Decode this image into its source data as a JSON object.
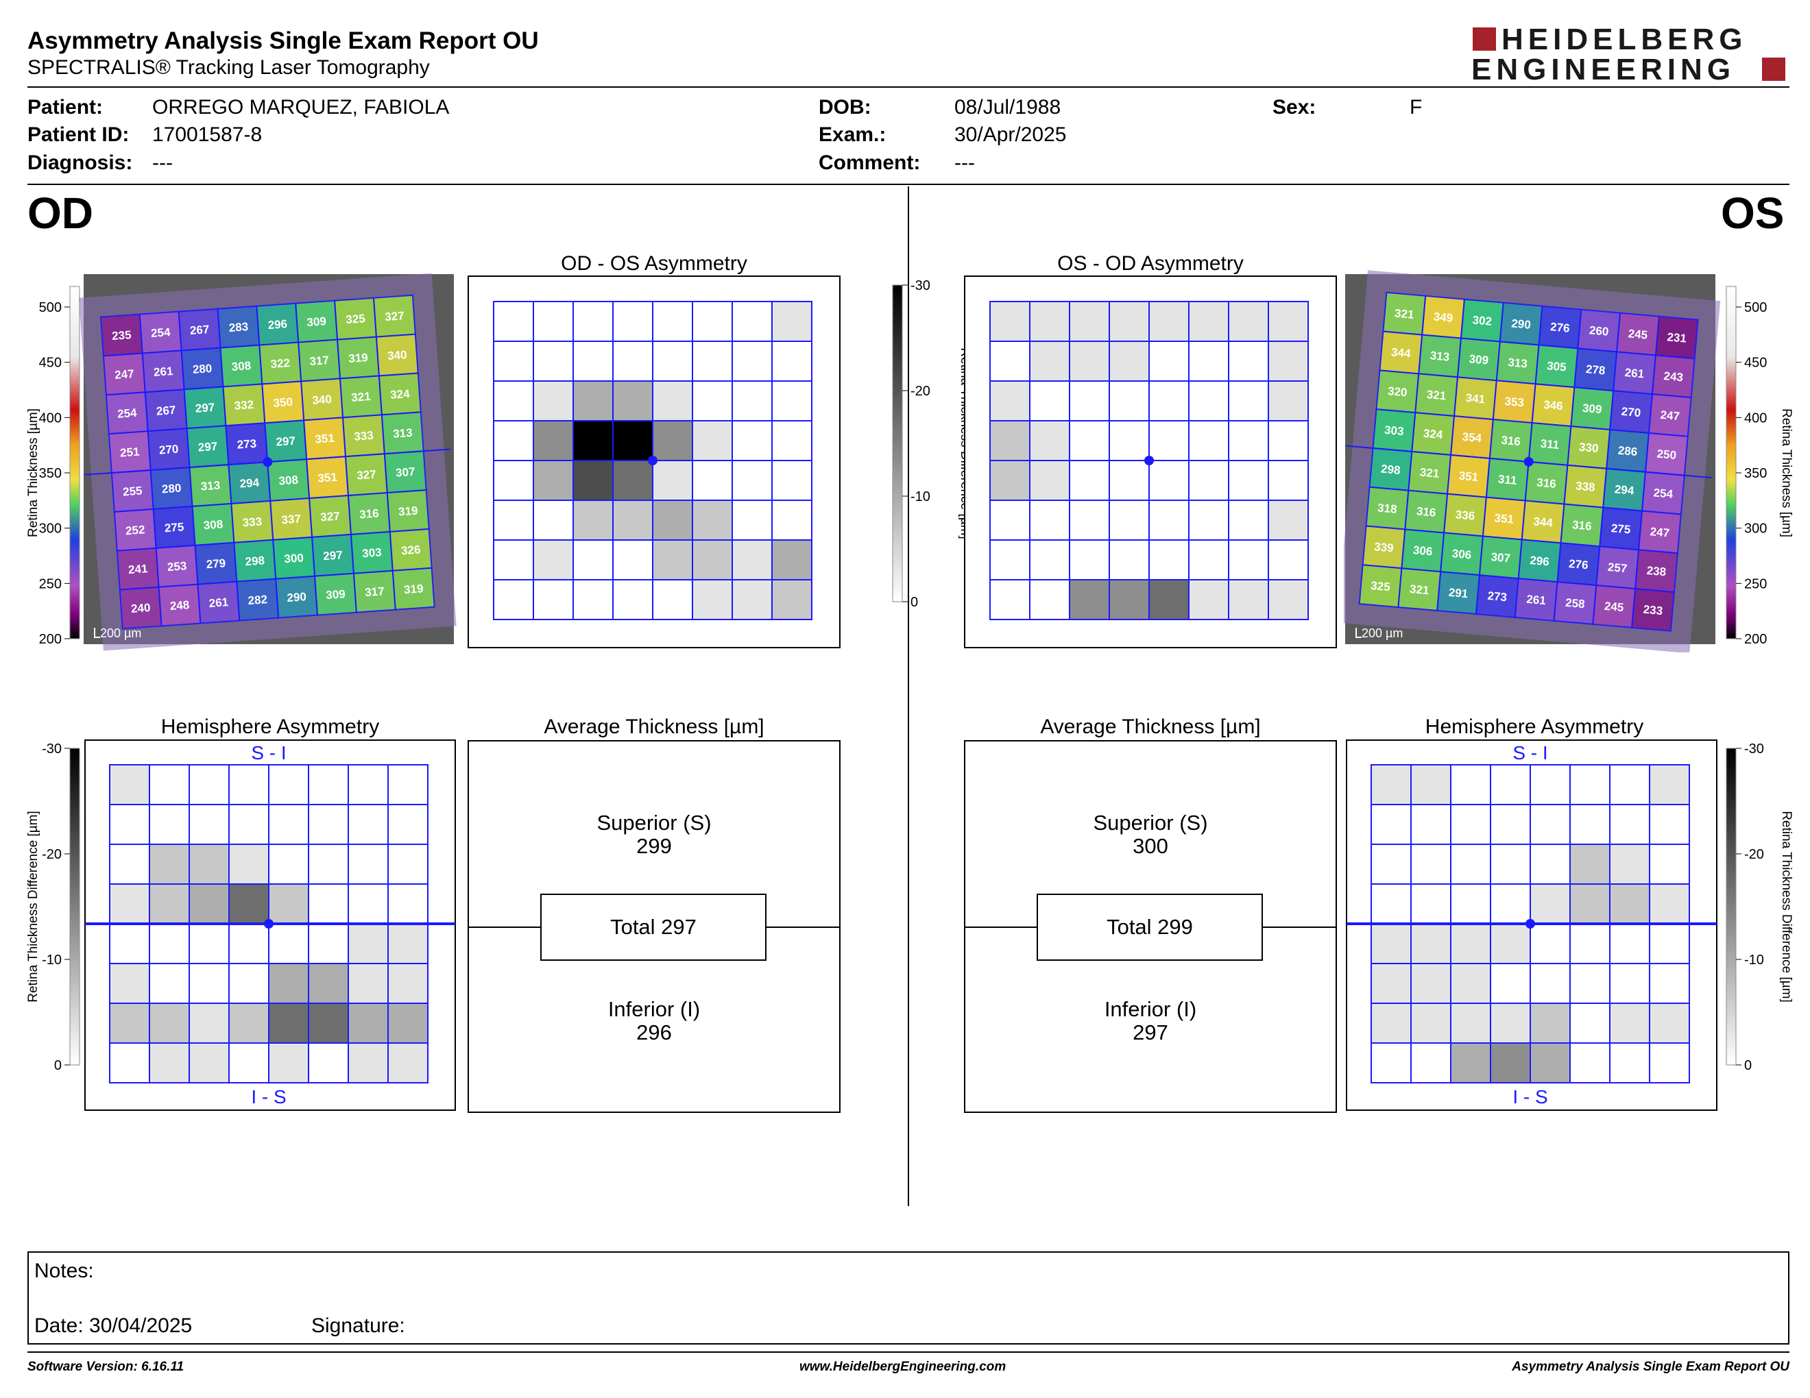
{
  "report": {
    "title": "Asymmetry Analysis Single Exam Report OU",
    "subtitle": "SPECTRALIS® Tracking Laser Tomography",
    "logo_line1": "HEIDELBERG",
    "logo_line2": "ENGINEERING",
    "brand_color": "#a5222a"
  },
  "patient": {
    "patient_label": "Patient:",
    "patient_value": "ORREGO MARQUEZ, FABIOLA",
    "id_label": "Patient ID:",
    "id_value": "17001587-8",
    "diagnosis_label": "Diagnosis:",
    "diagnosis_value": "---",
    "dob_label": "DOB:",
    "dob_value": "08/Jul/1988",
    "exam_label": "Exam.:",
    "exam_value": "30/Apr/2025",
    "comment_label": "Comment:",
    "comment_value": "---",
    "sex_label": "Sex:",
    "sex_value": "F"
  },
  "od": {
    "eye_label": "OD",
    "asym_title": "OD - OS Asymmetry",
    "hemi_title": "Hemisphere Asymmetry",
    "avg_title": "Average Thickness [µm]",
    "hemi_top": "S - I",
    "hemi_bottom": "I - S",
    "superior_label": "Superior (S)",
    "superior_value": "299",
    "total": "Total 297",
    "inferior_label": "Inferior (I)",
    "inferior_value": "296",
    "scale_bar": "200 µm",
    "thickness_grid": [
      [
        235,
        254,
        267,
        283,
        296,
        309,
        325,
        327
      ],
      [
        247,
        261,
        280,
        308,
        322,
        317,
        319,
        340
      ],
      [
        254,
        267,
        297,
        332,
        350,
        340,
        321,
        324
      ],
      [
        251,
        270,
        297,
        273,
        297,
        351,
        333,
        313
      ],
      [
        255,
        280,
        313,
        294,
        308,
        351,
        327,
        307
      ],
      [
        252,
        275,
        308,
        333,
        337,
        327,
        316,
        319
      ],
      [
        241,
        253,
        279,
        298,
        300,
        297,
        303,
        326
      ],
      [
        240,
        248,
        261,
        282,
        290,
        309,
        317,
        319
      ]
    ],
    "asym_grid": [
      [
        0,
        0,
        0,
        0,
        0,
        0,
        0,
        1
      ],
      [
        0,
        0,
        0,
        0,
        0,
        0,
        0,
        0
      ],
      [
        0,
        1,
        3,
        3,
        1,
        0,
        0,
        0
      ],
      [
        0,
        4,
        8,
        8,
        4,
        1,
        0,
        0
      ],
      [
        0,
        3,
        6,
        5,
        1,
        0,
        0,
        0
      ],
      [
        0,
        0,
        2,
        2,
        3,
        2,
        0,
        0
      ],
      [
        0,
        1,
        0,
        0,
        2,
        2,
        1,
        3
      ],
      [
        0,
        0,
        0,
        0,
        0,
        1,
        1,
        2
      ]
    ],
    "hemi_grid": [
      [
        1,
        0,
        0,
        0,
        0,
        0,
        0,
        0
      ],
      [
        0,
        0,
        0,
        0,
        0,
        0,
        0,
        0
      ],
      [
        0,
        2,
        2,
        1,
        0,
        0,
        0,
        0
      ],
      [
        1,
        2,
        3,
        5,
        2,
        0,
        0,
        0
      ],
      [
        0,
        0,
        0,
        0,
        0,
        0,
        1,
        1
      ],
      [
        1,
        0,
        0,
        0,
        3,
        3,
        1,
        1
      ],
      [
        2,
        2,
        1,
        2,
        5,
        5,
        3,
        3
      ],
      [
        0,
        1,
        1,
        0,
        1,
        0,
        1,
        1
      ]
    ]
  },
  "os": {
    "eye_label": "OS",
    "asym_title": "OS - OD Asymmetry",
    "hemi_title": "Hemisphere Asymmetry",
    "avg_title": "Average Thickness [µm]",
    "hemi_top": "S - I",
    "hemi_bottom": "I - S",
    "superior_label": "Superior (S)",
    "superior_value": "300",
    "total": "Total 299",
    "inferior_label": "Inferior (I)",
    "inferior_value": "297",
    "scale_bar": "200 µm",
    "thickness_grid": [
      [
        321,
        349,
        302,
        290,
        276,
        260,
        245,
        231
      ],
      [
        344,
        313,
        309,
        313,
        305,
        278,
        261,
        243
      ],
      [
        320,
        321,
        341,
        353,
        346,
        309,
        270,
        247
      ],
      [
        303,
        324,
        354,
        316,
        311,
        330,
        286,
        250
      ],
      [
        298,
        321,
        351,
        311,
        316,
        338,
        294,
        254
      ],
      [
        318,
        316,
        336,
        351,
        344,
        316,
        275,
        247
      ],
      [
        339,
        306,
        306,
        307,
        296,
        276,
        257,
        238
      ],
      [
        325,
        321,
        291,
        273,
        261,
        258,
        245,
        233
      ]
    ],
    "asym_grid": [
      [
        1,
        1,
        1,
        1,
        1,
        1,
        1,
        1
      ],
      [
        0,
        1,
        1,
        1,
        0,
        0,
        0,
        1
      ],
      [
        1,
        0,
        0,
        0,
        0,
        0,
        0,
        1
      ],
      [
        2,
        1,
        0,
        0,
        0,
        0,
        0,
        0
      ],
      [
        2,
        1,
        0,
        0,
        0,
        0,
        0,
        0
      ],
      [
        0,
        0,
        0,
        0,
        0,
        0,
        0,
        1
      ],
      [
        0,
        0,
        0,
        0,
        0,
        0,
        0,
        0
      ],
      [
        0,
        0,
        4,
        4,
        5,
        1,
        1,
        1
      ]
    ],
    "hemi_grid": [
      [
        1,
        1,
        0,
        0,
        0,
        0,
        0,
        1
      ],
      [
        0,
        0,
        0,
        0,
        0,
        0,
        0,
        0
      ],
      [
        0,
        0,
        0,
        0,
        0,
        2,
        1,
        0
      ],
      [
        0,
        0,
        0,
        0,
        1,
        2,
        2,
        1
      ],
      [
        1,
        1,
        1,
        1,
        0,
        0,
        0,
        0
      ],
      [
        1,
        1,
        1,
        0,
        0,
        0,
        0,
        0
      ],
      [
        1,
        1,
        1,
        1,
        2,
        0,
        1,
        1
      ],
      [
        0,
        0,
        3,
        4,
        3,
        0,
        0,
        0
      ]
    ]
  },
  "scales": {
    "thickness_label": "Retina Thickness [µm]",
    "thickness_ticks": [
      "500",
      "450",
      "400",
      "350",
      "300",
      "250",
      "200"
    ],
    "diff_label": "Retina Thickness Difference [µm]",
    "diff_ticks": [
      "-30",
      "-20",
      "-10",
      "0"
    ]
  },
  "notes": {
    "notes_label": "Notes:",
    "date_label": "Date: 30/04/2025",
    "signature_label": "Signature:"
  },
  "footer": {
    "software": "Software Version: 6.16.11",
    "website": "www.HeidelbergEngineering.com",
    "report_name": "Asymmetry Analysis Single Exam Report OU"
  }
}
